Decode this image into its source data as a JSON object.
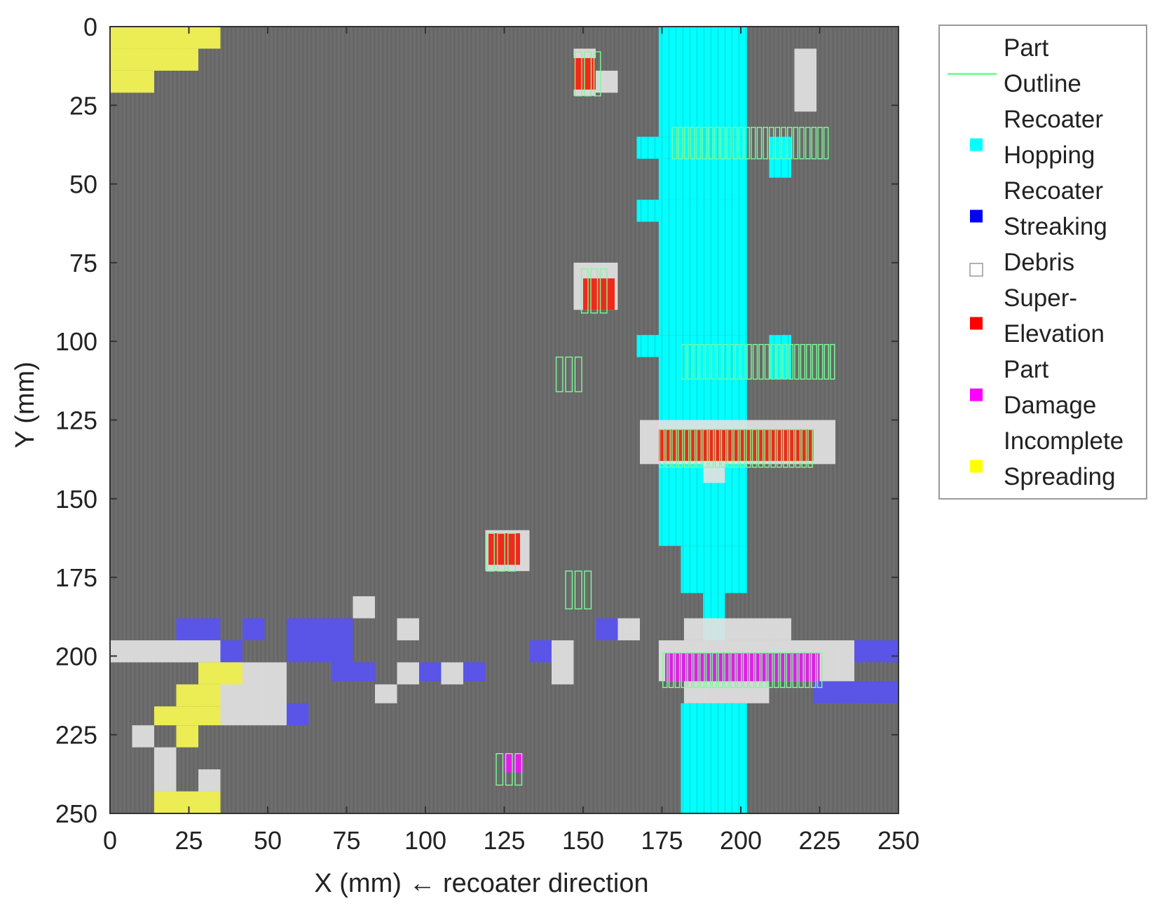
{
  "chart_data": {
    "type": "heatmap",
    "title": "",
    "xlabel": "X (mm) ← recoater direction",
    "ylabel": "Y (mm)",
    "xlim": [
      0,
      250
    ],
    "ylim": [
      0,
      250
    ],
    "y_inverted": true,
    "xticks": [
      0,
      25,
      50,
      75,
      100,
      125,
      150,
      175,
      200,
      225,
      250
    ],
    "yticks": [
      0,
      25,
      50,
      75,
      100,
      125,
      150,
      175,
      200,
      225,
      250
    ],
    "grid": false,
    "legend_position": "outside-right",
    "background_color": "#6b6b6b",
    "legend": [
      {
        "key": "part_outline",
        "lines": [
          "Part",
          "Outline"
        ],
        "color": "#7CFC9A",
        "marker": "line"
      },
      {
        "key": "recoater_hopping",
        "lines": [
          "Recoater",
          "Hopping"
        ],
        "color": "#00FFFF",
        "marker": "square"
      },
      {
        "key": "recoater_streaking",
        "lines": [
          "Recoater",
          "Streaking"
        ],
        "color": "#0000FF",
        "marker": "square"
      },
      {
        "key": "debris",
        "lines": [
          "Debris"
        ],
        "color": "#FFFFFF",
        "marker": "square"
      },
      {
        "key": "super_elevation",
        "lines": [
          "Super-",
          "Elevation"
        ],
        "color": "#FF0000",
        "marker": "square"
      },
      {
        "key": "part_damage",
        "lines": [
          "Part",
          "Damage"
        ],
        "color": "#FF00FF",
        "marker": "square"
      },
      {
        "key": "incomplete_spreading",
        "lines": [
          "Incomplete",
          "Spreading"
        ],
        "color": "#FFFF00",
        "marker": "square"
      }
    ],
    "regions": [
      {
        "class": "recoater_hopping",
        "rects": [
          [
            174,
            0,
            202,
            35
          ],
          [
            174,
            35,
            202,
            42
          ],
          [
            167,
            35,
            174,
            42
          ],
          [
            174,
            42,
            202,
            55
          ],
          [
            167,
            55,
            174,
            62
          ],
          [
            174,
            55,
            202,
            98
          ],
          [
            167,
            98,
            174,
            105
          ],
          [
            174,
            98,
            202,
            165
          ],
          [
            181,
            165,
            202,
            180
          ],
          [
            188,
            180,
            195,
            195
          ],
          [
            209,
            35,
            216,
            48
          ],
          [
            209,
            98,
            216,
            112
          ],
          [
            181,
            215,
            202,
            250
          ],
          [
            188,
            215,
            195,
            230
          ]
        ]
      },
      {
        "class": "recoater_streaking",
        "rects": [
          [
            21,
            188,
            35,
            195
          ],
          [
            42,
            188,
            49,
            195
          ],
          [
            56,
            188,
            77,
            195
          ],
          [
            35,
            195,
            42,
            202
          ],
          [
            56,
            195,
            77,
            202
          ],
          [
            70,
            202,
            84,
            208
          ],
          [
            98,
            202,
            105,
            208
          ],
          [
            112,
            202,
            119,
            208
          ],
          [
            133,
            195,
            140,
            202
          ],
          [
            154,
            188,
            161,
            195
          ],
          [
            236,
            195,
            250,
            202
          ],
          [
            223,
            208,
            250,
            215
          ],
          [
            56,
            215,
            63,
            222
          ]
        ]
      },
      {
        "class": "debris",
        "rects": [
          [
            147,
            7,
            154,
            22
          ],
          [
            154,
            14,
            161,
            21
          ],
          [
            217,
            7,
            224,
            27
          ],
          [
            147,
            75,
            161,
            90
          ],
          [
            168,
            125,
            230,
            139
          ],
          [
            188,
            139,
            195,
            145
          ],
          [
            119,
            160,
            133,
            173
          ],
          [
            77,
            181,
            84,
            188
          ],
          [
            91,
            188,
            98,
            195
          ],
          [
            161,
            188,
            168,
            195
          ],
          [
            0,
            195,
            35,
            202
          ],
          [
            140,
            195,
            147,
            209
          ],
          [
            35,
            202,
            56,
            222
          ],
          [
            91,
            202,
            98,
            209
          ],
          [
            105,
            202,
            112,
            209
          ],
          [
            84,
            209,
            91,
            215
          ],
          [
            182,
            188,
            216,
            195
          ],
          [
            174,
            195,
            236,
            208
          ],
          [
            182,
            208,
            209,
            215
          ],
          [
            7,
            222,
            14,
            229
          ],
          [
            14,
            229,
            21,
            243
          ],
          [
            28,
            236,
            35,
            243
          ]
        ]
      },
      {
        "class": "super_elevation",
        "rects": [
          [
            147,
            10,
            154,
            20
          ],
          [
            150,
            80,
            160,
            90
          ],
          [
            174,
            128,
            223,
            138
          ],
          [
            120,
            161,
            130,
            171
          ]
        ]
      },
      {
        "class": "part_damage",
        "rects": [
          [
            176,
            199,
            225,
            208
          ],
          [
            125,
            231,
            131,
            237
          ]
        ]
      },
      {
        "class": "incomplete_spreading",
        "rects": [
          [
            0,
            0,
            35,
            7
          ],
          [
            0,
            7,
            28,
            14
          ],
          [
            0,
            14,
            14,
            21
          ],
          [
            28,
            202,
            42,
            209
          ],
          [
            21,
            209,
            35,
            216
          ],
          [
            14,
            216,
            35,
            222
          ],
          [
            21,
            222,
            28,
            229
          ],
          [
            14,
            243,
            35,
            250
          ]
        ]
      }
    ],
    "part_outlines": [
      {
        "x0": 147,
        "x1": 156,
        "y0": 8,
        "y1": 22,
        "n": 3
      },
      {
        "x0": 178,
        "x1": 228,
        "y0": 32,
        "y1": 42,
        "n": 26
      },
      {
        "x0": 149,
        "x1": 158,
        "y0": 77,
        "y1": 91,
        "n": 3
      },
      {
        "x0": 141,
        "x1": 150,
        "y0": 105,
        "y1": 116,
        "n": 3
      },
      {
        "x0": 181,
        "x1": 230,
        "y0": 101,
        "y1": 112,
        "n": 26
      },
      {
        "x0": 174,
        "x1": 223,
        "y0": 128,
        "y1": 140,
        "n": 25
      },
      {
        "x0": 119,
        "x1": 129,
        "y0": 161,
        "y1": 173,
        "n": 3
      },
      {
        "x0": 144,
        "x1": 153,
        "y0": 173,
        "y1": 185,
        "n": 3
      },
      {
        "x0": 175,
        "x1": 226,
        "y0": 199,
        "y1": 210,
        "n": 26
      },
      {
        "x0": 122,
        "x1": 131,
        "y0": 231,
        "y1": 241,
        "n": 3
      }
    ]
  }
}
